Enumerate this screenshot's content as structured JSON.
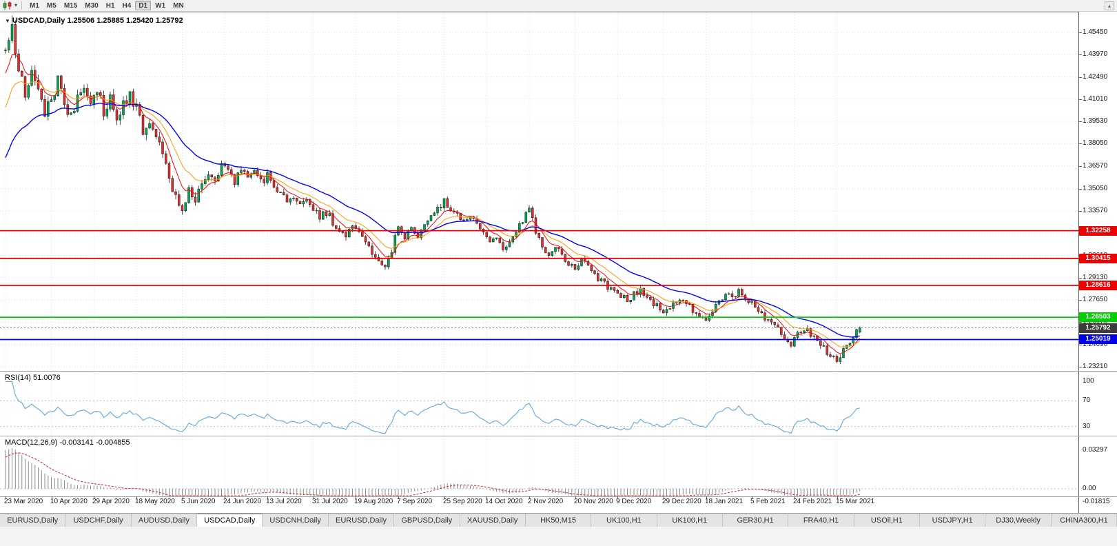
{
  "toolbar": {
    "timeframes": [
      "M1",
      "M5",
      "M15",
      "M30",
      "H1",
      "H4",
      "D1",
      "W1",
      "MN"
    ],
    "active": "D1"
  },
  "chart": {
    "title": "USDCAD,Daily 1.25506 1.25885 1.25420 1.25792",
    "symbol": "USDCAD,Daily",
    "ohlc": {
      "open": "1.25506",
      "high": "1.25885",
      "low": "1.25420",
      "close": "1.25792"
    },
    "price_axis": {
      "ticks": [
        "1.45450",
        "1.43970",
        "1.42490",
        "1.41010",
        "1.39530",
        "1.38050",
        "1.36570",
        "1.35050",
        "1.33570",
        "1.32090",
        "1.30610",
        "1.29130",
        "1.27650",
        "1.26170",
        "1.24690",
        "1.23210"
      ]
    },
    "hlines": [
      {
        "price": 1.32258,
        "label": "1.32258",
        "color": "#ee0000",
        "style": "solid"
      },
      {
        "price": 1.30415,
        "label": "1.30415",
        "color": "#ee0000",
        "style": "solid"
      },
      {
        "price": 1.28616,
        "label": "1.28616",
        "color": "#ee0000",
        "style": "solid"
      },
      {
        "price": 1.26503,
        "label": "1.26503",
        "color": "#00d000",
        "style": "solid"
      },
      {
        "price": 1.25792,
        "label": "1.25792",
        "color": "#777777",
        "style": "dotted",
        "badge": "#3c3c3c"
      },
      {
        "price": 1.25019,
        "label": "1.25019",
        "color": "#0000ee",
        "style": "solid"
      }
    ],
    "date_axis": {
      "labels": [
        "23 Mar 2020",
        "10 Apr 2020",
        "29 Apr 2020",
        "18 May 2020",
        "5 Jun 2020",
        "24 Jun 2020",
        "13 Jul 2020",
        "31 Jul 2020",
        "19 Aug 2020",
        "7 Sep 2020",
        "25 Sep 2020",
        "14 Oct 2020",
        "2 Nov 2020",
        "20 Nov 2020",
        "9 Dec 2020",
        "29 Dec 2020",
        "18 Jan 2021",
        "5 Feb 2021",
        "24 Feb 2021",
        "15 Mar 2021"
      ],
      "indices": [
        0,
        14,
        27,
        40,
        54,
        67,
        80,
        94,
        107,
        120,
        134,
        147,
        160,
        174,
        187,
        201,
        214,
        228,
        241,
        254
      ]
    }
  },
  "rsi": {
    "label": "RSI(14) 51.0076",
    "line_color": "#5ea7dd",
    "levels": [
      {
        "text": "100",
        "value": 100
      },
      {
        "text": "70",
        "value": 70
      },
      {
        "text": "30",
        "value": 30
      }
    ]
  },
  "macd": {
    "label": "MACD(12,26,9) -0.003141 -0.004855",
    "histogram_color": "#8a8a8a",
    "signal_color": "#e01f1f",
    "axis_labels": [
      {
        "text": "0.03297",
        "value": 0.03297
      },
      {
        "text": "0.00",
        "value": 0
      },
      {
        "text": "-0.01815",
        "value": -0.01815
      }
    ]
  },
  "tabs": {
    "items": [
      "EURUSD,Daily",
      "USDCHF,Daily",
      "AUDUSD,Daily",
      "USDCAD,Daily",
      "USDCNH,Daily",
      "EURUSD,Daily",
      "GBPUSD,Daily",
      "XAUUSD,Daily",
      "HK50,M15",
      "UK100,H1",
      "UK100,H1",
      "GER30,H1",
      "FRA40,H1",
      "USOil,H1",
      "USDJPY,H1",
      "DJ30,Weekly",
      "CHINA300,H1"
    ],
    "active_index": 3
  },
  "chart_data": {
    "type": "candlestick",
    "symbol": "USDCAD",
    "timeframe": "Daily",
    "x_range": [
      "23 Mar 2020",
      "19 Mar 2021"
    ],
    "y_axis_range": [
      1.2293,
      1.46781
    ],
    "current_price": 1.25792,
    "last_candle": {
      "open": 1.25506,
      "high": 1.25885,
      "low": 1.2542,
      "close": 1.25792
    },
    "horizontal_levels": [
      1.32258,
      1.30415,
      1.28616,
      1.26503,
      1.25019
    ],
    "candle_count": 262,
    "prehistory_anchors": [
      [
        -50,
        1.298
      ],
      [
        -40,
        1.301
      ],
      [
        -30,
        1.304
      ],
      [
        -20,
        1.312
      ],
      [
        -15,
        1.332
      ],
      [
        -10,
        1.37
      ],
      [
        -6,
        1.41
      ],
      [
        -3,
        1.433
      ],
      [
        -1,
        1.442
      ]
    ],
    "close_path_anchors": [
      [
        0,
        1.44
      ],
      [
        2,
        1.459
      ],
      [
        4,
        1.428
      ],
      [
        6,
        1.415
      ],
      [
        8,
        1.431
      ],
      [
        10,
        1.419
      ],
      [
        12,
        1.402
      ],
      [
        14,
        1.411
      ],
      [
        16,
        1.422
      ],
      [
        18,
        1.406
      ],
      [
        20,
        1.398
      ],
      [
        22,
        1.412
      ],
      [
        24,
        1.419
      ],
      [
        26,
        1.408
      ],
      [
        28,
        1.415
      ],
      [
        30,
        1.402
      ],
      [
        32,
        1.41
      ],
      [
        34,
        1.396
      ],
      [
        36,
        1.406
      ],
      [
        38,
        1.413
      ],
      [
        40,
        1.406
      ],
      [
        42,
        1.39
      ],
      [
        44,
        1.397
      ],
      [
        46,
        1.384
      ],
      [
        48,
        1.374
      ],
      [
        50,
        1.356
      ],
      [
        52,
        1.344
      ],
      [
        54,
        1.339
      ],
      [
        56,
        1.348
      ],
      [
        58,
        1.343
      ],
      [
        60,
        1.355
      ],
      [
        62,
        1.361
      ],
      [
        64,
        1.356
      ],
      [
        66,
        1.365
      ],
      [
        68,
        1.361
      ],
      [
        70,
        1.356
      ],
      [
        72,
        1.363
      ],
      [
        74,
        1.358
      ],
      [
        76,
        1.362
      ],
      [
        78,
        1.355
      ],
      [
        80,
        1.359
      ],
      [
        82,
        1.352
      ],
      [
        84,
        1.347
      ],
      [
        86,
        1.341
      ],
      [
        88,
        1.344
      ],
      [
        90,
        1.339
      ],
      [
        92,
        1.343
      ],
      [
        94,
        1.338
      ],
      [
        96,
        1.332
      ],
      [
        98,
        1.335
      ],
      [
        100,
        1.328
      ],
      [
        102,
        1.323
      ],
      [
        104,
        1.319
      ],
      [
        106,
        1.326
      ],
      [
        108,
        1.321
      ],
      [
        110,
        1.316
      ],
      [
        112,
        1.309
      ],
      [
        114,
        1.302
      ],
      [
        116,
        1.2998
      ],
      [
        118,
        1.308
      ],
      [
        120,
        1.327
      ],
      [
        122,
        1.318
      ],
      [
        124,
        1.324
      ],
      [
        126,
        1.319
      ],
      [
        128,
        1.326
      ],
      [
        130,
        1.331
      ],
      [
        132,
        1.337
      ],
      [
        134,
        1.342
      ],
      [
        136,
        1.337
      ],
      [
        138,
        1.332
      ],
      [
        140,
        1.329
      ],
      [
        142,
        1.334
      ],
      [
        144,
        1.328
      ],
      [
        146,
        1.321
      ],
      [
        148,
        1.314
      ],
      [
        150,
        1.319
      ],
      [
        152,
        1.312
      ],
      [
        154,
        1.316
      ],
      [
        156,
        1.322
      ],
      [
        158,
        1.33
      ],
      [
        160,
        1.338
      ],
      [
        162,
        1.322
      ],
      [
        164,
        1.312
      ],
      [
        166,
        1.308
      ],
      [
        168,
        1.312
      ],
      [
        170,
        1.306
      ],
      [
        172,
        1.301
      ],
      [
        174,
        1.297
      ],
      [
        176,
        1.304
      ],
      [
        178,
        1.299
      ],
      [
        180,
        1.293
      ],
      [
        182,
        1.289
      ],
      [
        184,
        1.285
      ],
      [
        186,
        1.282
      ],
      [
        188,
        1.279
      ],
      [
        190,
        1.276
      ],
      [
        192,
        1.28
      ],
      [
        194,
        1.284
      ],
      [
        196,
        1.278
      ],
      [
        198,
        1.274
      ],
      [
        200,
        1.271
      ],
      [
        202,
        1.269
      ],
      [
        204,
        1.273
      ],
      [
        206,
        1.277
      ],
      [
        208,
        1.274
      ],
      [
        210,
        1.27
      ],
      [
        212,
        1.266
      ],
      [
        214,
        1.264
      ],
      [
        216,
        1.27
      ],
      [
        218,
        1.276
      ],
      [
        220,
        1.28
      ],
      [
        222,
        1.277
      ],
      [
        224,
        1.282
      ],
      [
        226,
        1.278
      ],
      [
        228,
        1.274
      ],
      [
        230,
        1.27
      ],
      [
        232,
        1.265
      ],
      [
        234,
        1.261
      ],
      [
        236,
        1.256
      ],
      [
        238,
        1.252
      ],
      [
        240,
        1.247
      ],
      [
        242,
        1.253
      ],
      [
        244,
        1.258
      ],
      [
        246,
        1.254
      ],
      [
        248,
        1.249
      ],
      [
        250,
        1.244
      ],
      [
        252,
        1.239
      ],
      [
        254,
        1.236
      ],
      [
        256,
        1.242
      ],
      [
        258,
        1.25
      ],
      [
        260,
        1.256
      ],
      [
        261,
        1.2579
      ]
    ],
    "indicators": {
      "rsi": {
        "period": 14,
        "last_value": 51.0076,
        "scale": [
          0,
          100
        ],
        "marked_levels": [
          70,
          30
        ]
      },
      "macd": {
        "fast": 12,
        "slow": 26,
        "signal_period": 9,
        "last_main": -0.003141,
        "last_signal": -0.004855
      },
      "moving_averages": [
        {
          "color": "#ff0000",
          "period": 7
        },
        {
          "color": "#ff9900",
          "period": 14
        },
        {
          "color": "#0000ff",
          "period": 30
        }
      ]
    }
  }
}
